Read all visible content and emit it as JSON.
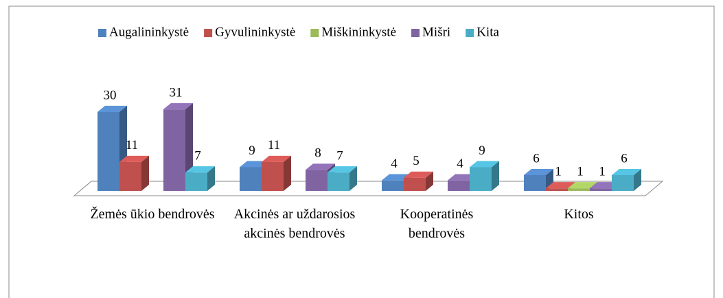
{
  "chart_data": {
    "type": "bar3d",
    "categories": [
      "Žemės ūkio bendrovės",
      "Akcinės ar uždarosios akcinės bendrovės",
      "Kooperatinės bendrovės",
      "Kitos"
    ],
    "series": [
      {
        "name": "Augalininkystė",
        "color": "#4f81bd",
        "values": [
          30,
          9,
          4,
          6
        ]
      },
      {
        "name": "Gyvulininkystė",
        "color": "#c0504d",
        "values": [
          11,
          11,
          5,
          1
        ]
      },
      {
        "name": "Miškininkystė",
        "color": "#9bbb59",
        "values": [
          null,
          null,
          null,
          1
        ]
      },
      {
        "name": "Mišri",
        "color": "#8064a2",
        "values": [
          31,
          8,
          4,
          1
        ]
      },
      {
        "name": "Kita",
        "color": "#4bacc6",
        "values": [
          7,
          7,
          9,
          6
        ]
      }
    ],
    "legend": "top"
  }
}
